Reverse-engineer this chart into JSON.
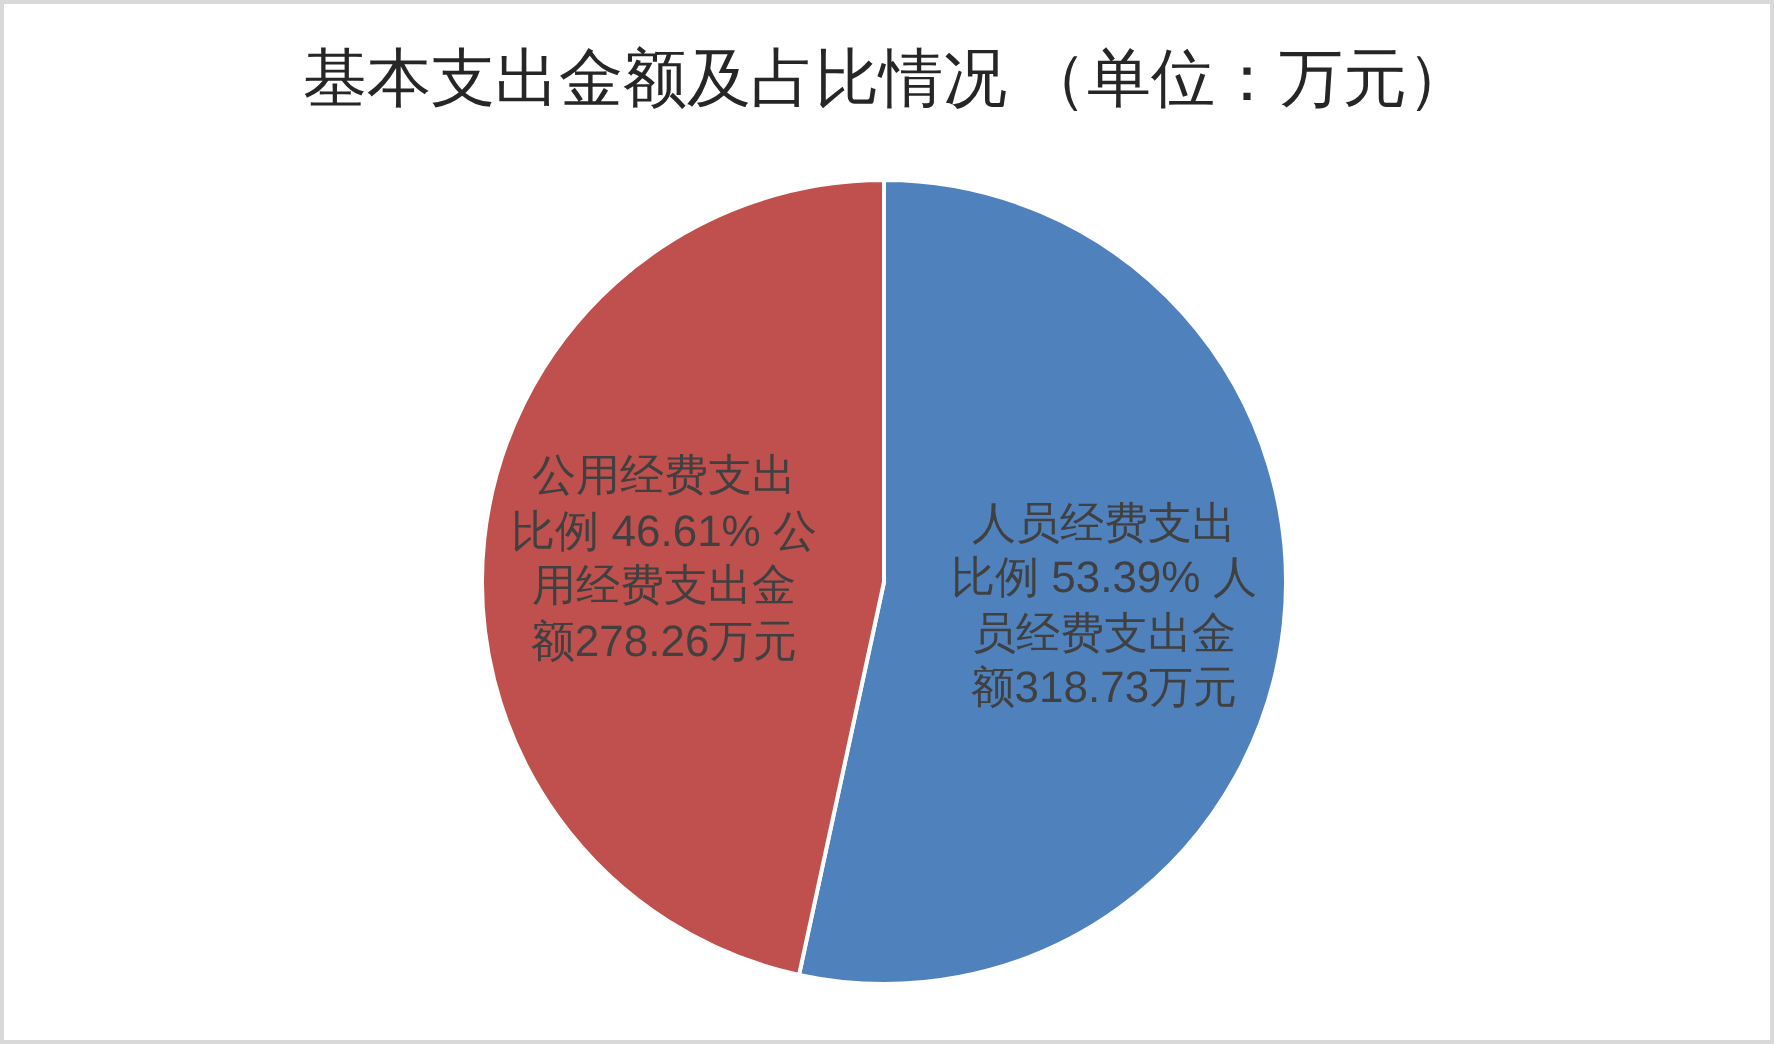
{
  "chart_data": {
    "type": "pie",
    "title": "基本支出金额及占比情况 （单位：万元）",
    "categories": [
      "人员经费支出",
      "公用经费支出"
    ],
    "values": [
      318.73,
      278.26
    ],
    "colors": [
      "#4f81bd",
      "#c0504d"
    ],
    "value_labels": [
      "比例 53.39% 人员经费支出金额318.73万元",
      "比例 46.61% 公用经费支出金额278.26万元"
    ]
  }
}
